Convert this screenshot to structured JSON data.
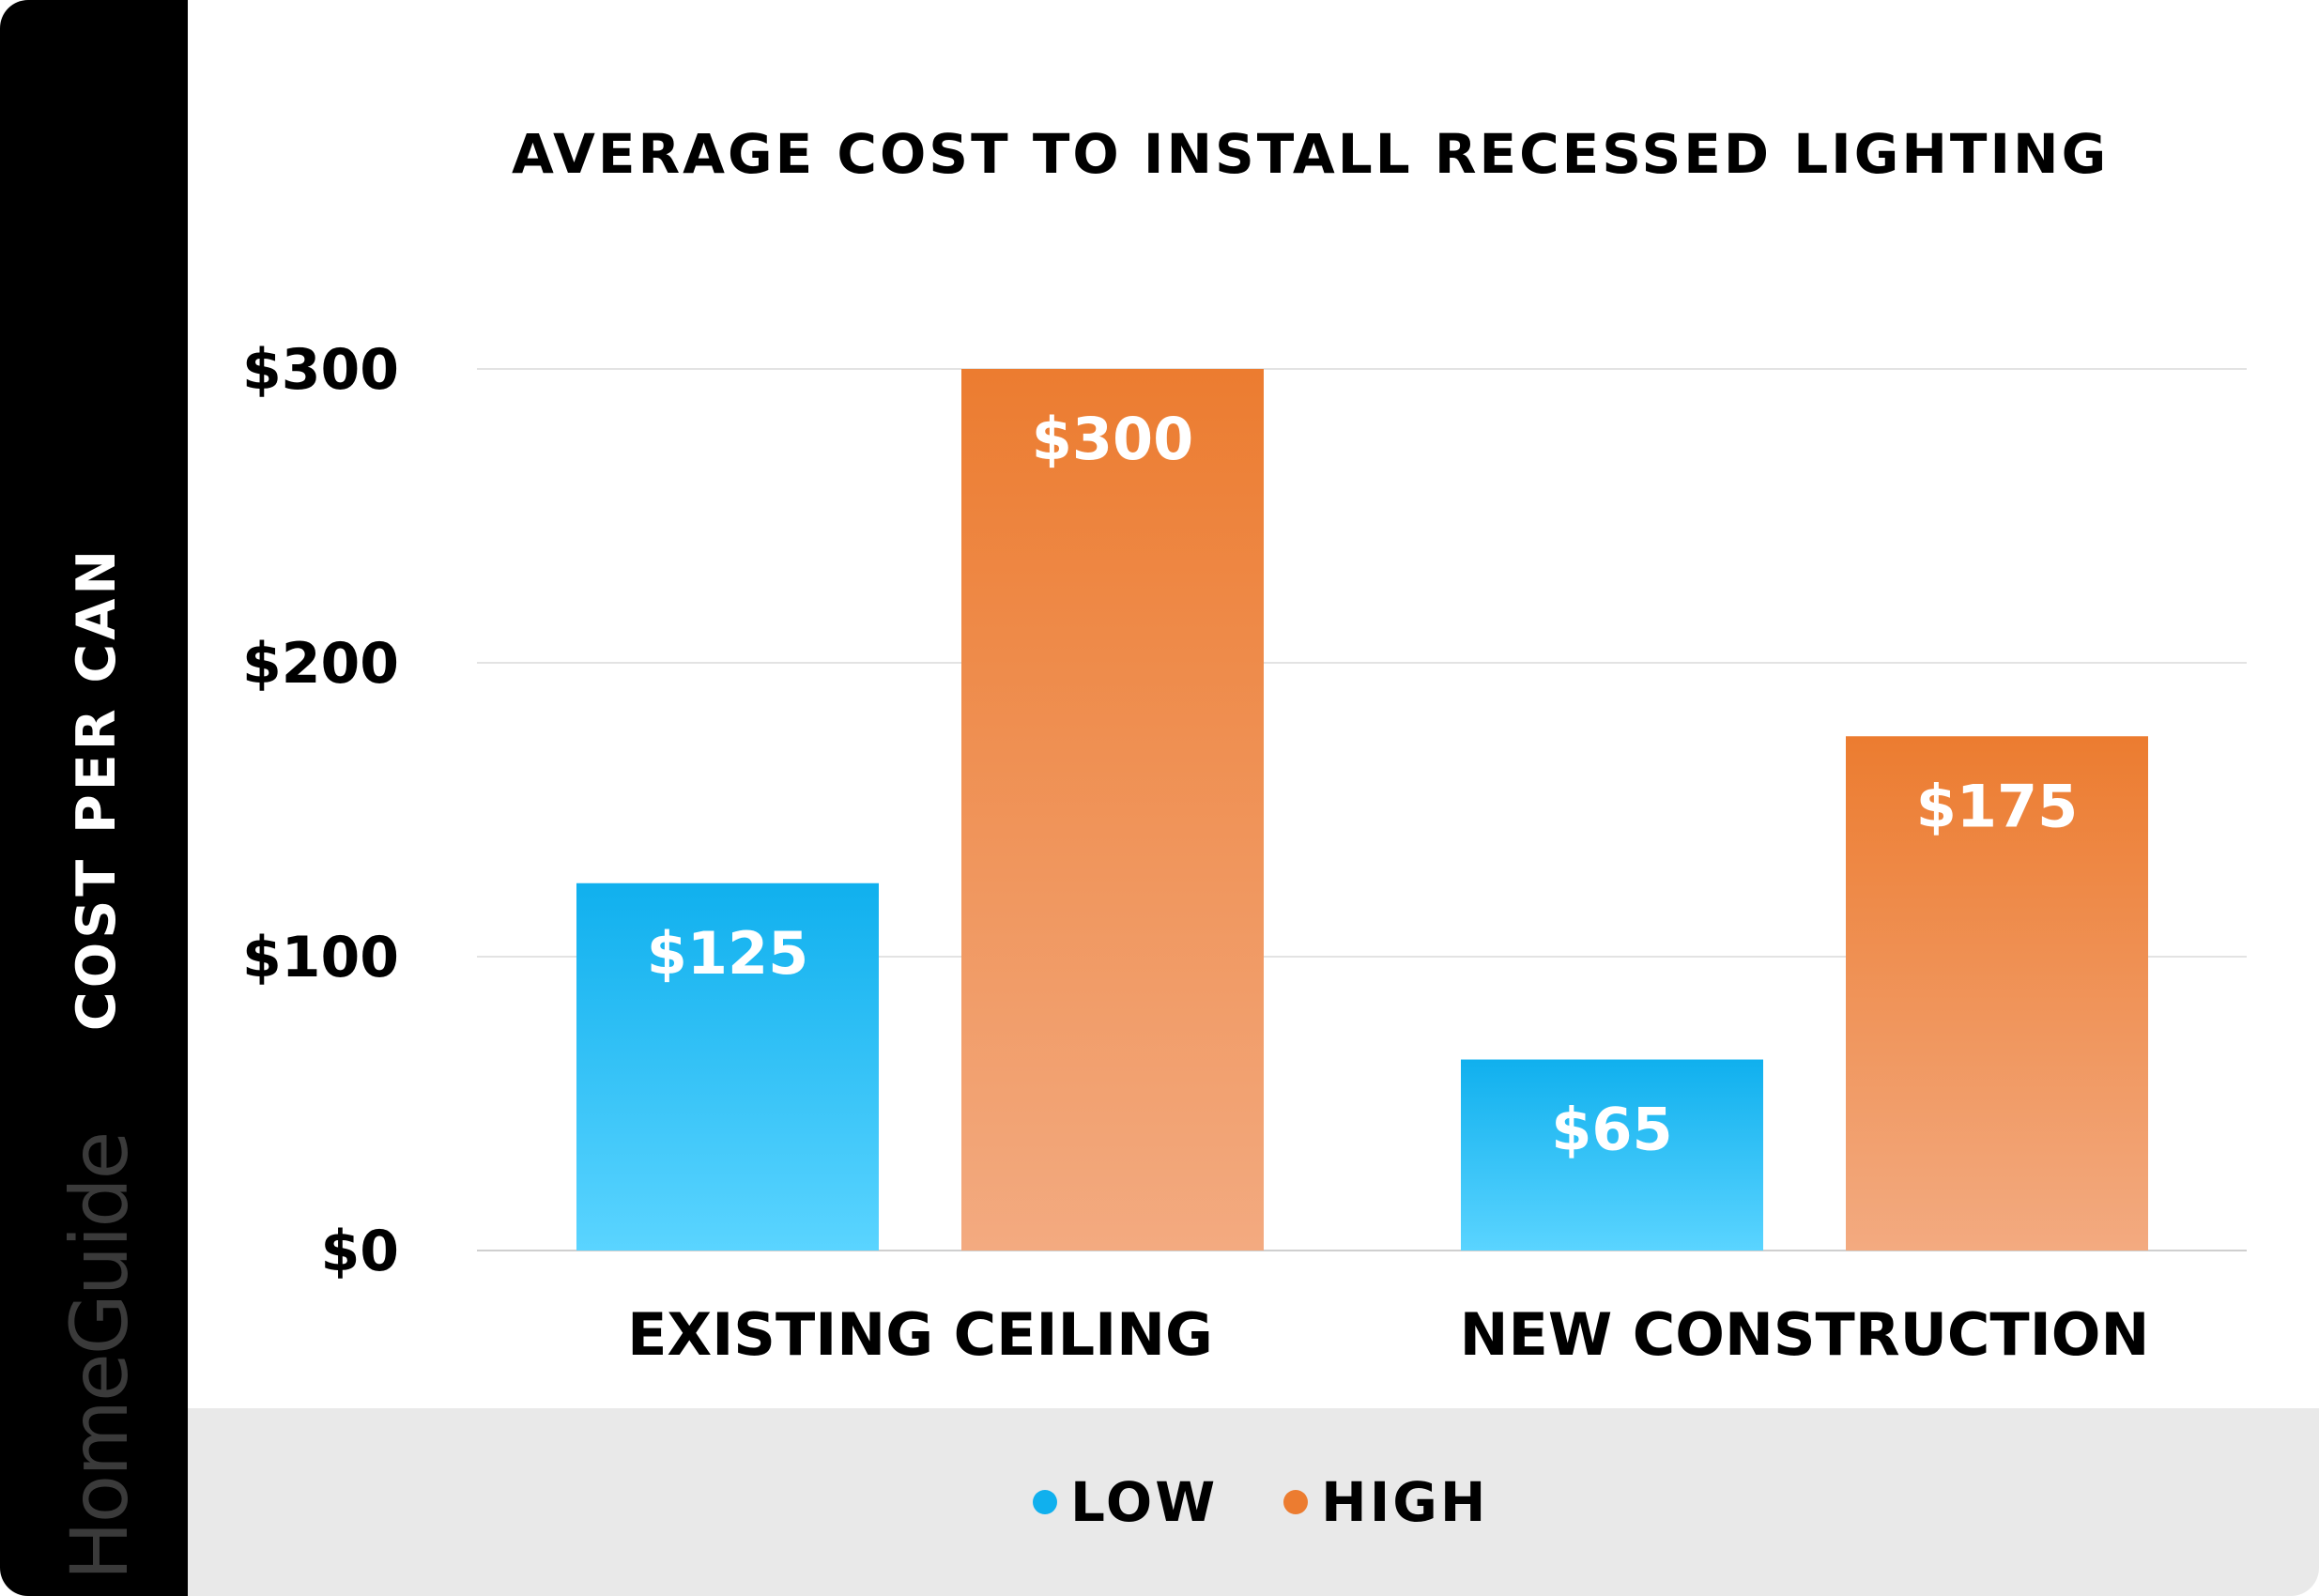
{
  "brand": {
    "name": "HomeGuide"
  },
  "chart_data": {
    "type": "bar",
    "title": "AVERAGE COST TO INSTALL RECESSED LIGHTING",
    "ylabel": "COST PER CAN",
    "xlabel": "",
    "categories": [
      "EXISTING CEILING",
      "NEW CONSTRUCTION"
    ],
    "series": [
      {
        "name": "LOW",
        "values": [
          125,
          65
        ],
        "color": "#10b0ee",
        "color_light": "#5ad4ff"
      },
      {
        "name": "HIGH",
        "values": [
          300,
          175
        ],
        "color": "#ec7c30",
        "color_light": "#f3aa80"
      }
    ],
    "value_labels": [
      [
        "$125",
        "$65"
      ],
      [
        "$300",
        "$175"
      ]
    ],
    "yticks": [
      0,
      100,
      200,
      300
    ],
    "ytick_labels": [
      "$0",
      "$100",
      "$200",
      "$300"
    ],
    "ylim": [
      0,
      300
    ],
    "grid": true,
    "legend_position": "bottom"
  }
}
